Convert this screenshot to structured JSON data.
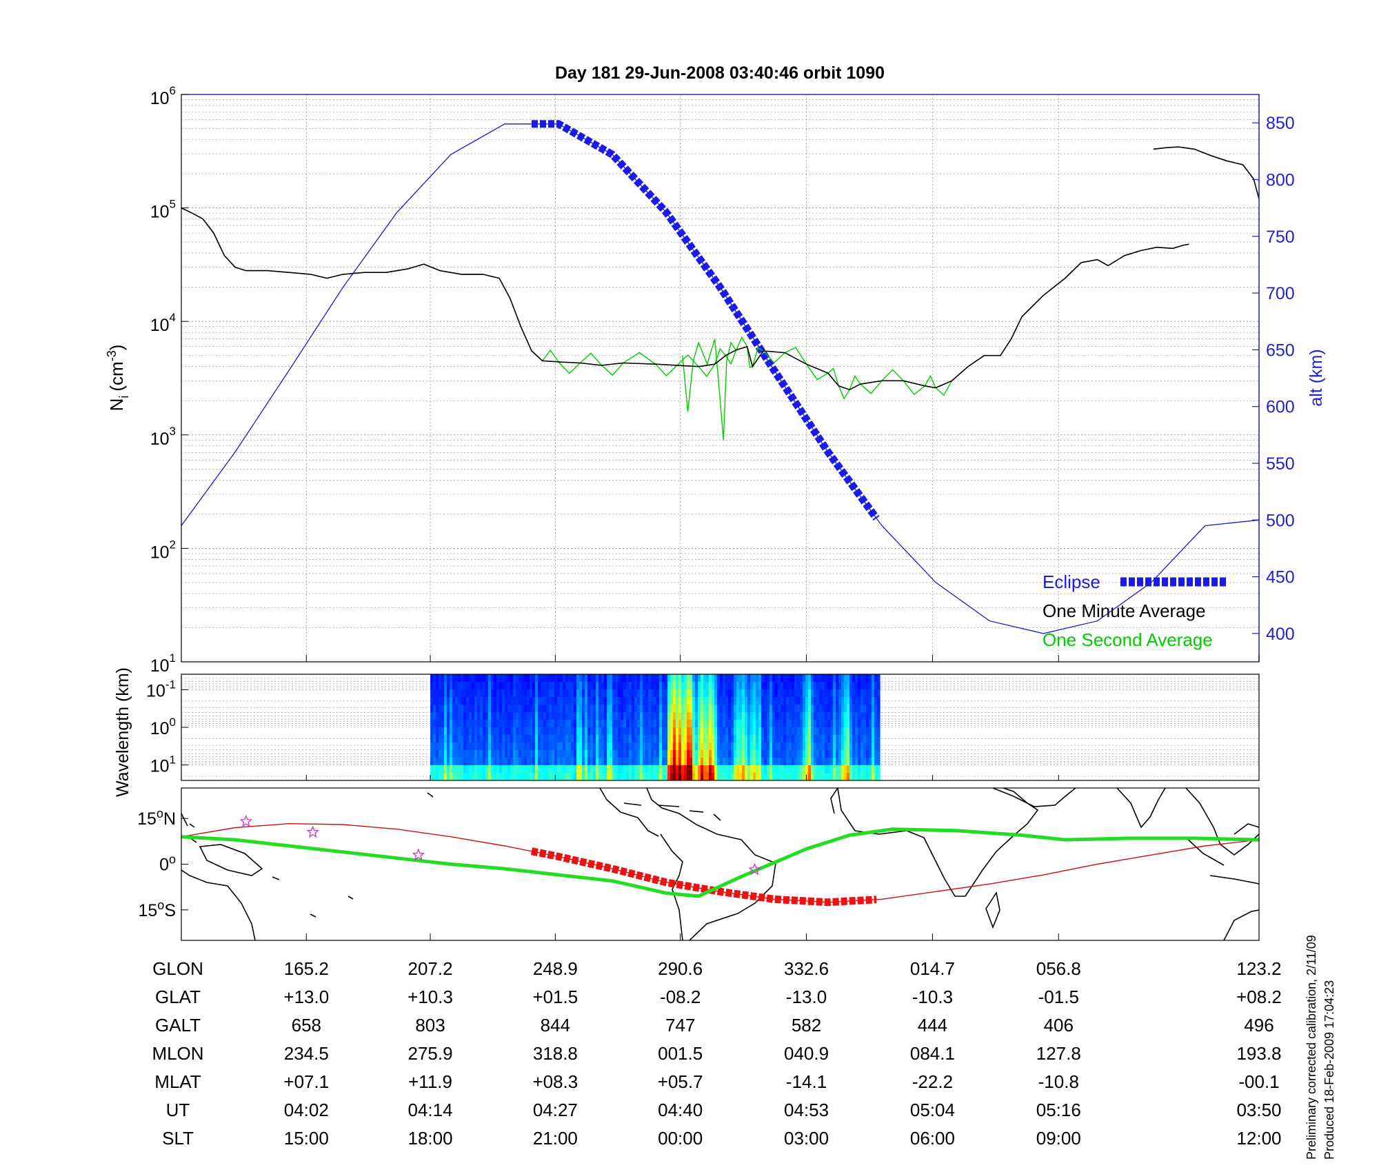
{
  "title": "Day 181  29-Jun-2008 03:40:46   orbit 1090",
  "colors": {
    "density_minute": "#000000",
    "density_second": "#00cc00",
    "altitude": "#1a1acc",
    "eclipse": "#1a1aee",
    "track": "#cc1111",
    "track_eclipse": "#ee1111",
    "magnetic_equator": "#22dd22",
    "star": "#cc33cc"
  },
  "legend": {
    "eclipse": "Eclipse",
    "minute": "One Minute Average",
    "second": "One Second Average"
  },
  "chart_data": [
    {
      "type": "line",
      "panel": "ion density and altitude",
      "ylabel_main": "N",
      "ylabel_sub": "i",
      "ylabel_paren": "(cm",
      "ylabel_sup": "-3",
      "ylabel_close": ")",
      "yscale": "log",
      "ylim": [
        10,
        1000000
      ],
      "yticks": [
        {
          "v": 1000000,
          "e": "6"
        },
        {
          "v": 100000,
          "e": "5"
        },
        {
          "v": 10000,
          "e": "4"
        },
        {
          "v": 1000,
          "e": "3"
        },
        {
          "v": 100,
          "e": "2"
        },
        {
          "v": 10,
          "e": "1"
        }
      ],
      "y2label": "alt (km)",
      "y2lim": [
        375,
        875
      ],
      "y2ticks": [
        "850",
        "800",
        "750",
        "700",
        "650",
        "600",
        "550",
        "500",
        "450",
        "400"
      ],
      "xlim": [
        0,
        100
      ],
      "minute_average": [
        [
          0,
          100000
        ],
        [
          1,
          90000
        ],
        [
          2,
          80000
        ],
        [
          3,
          60000
        ],
        [
          4,
          38000
        ],
        [
          5,
          30000
        ],
        [
          6,
          28000
        ],
        [
          8,
          28000
        ],
        [
          10,
          27000
        ],
        [
          12,
          26000
        ],
        [
          13.5,
          24000
        ],
        [
          15,
          26000
        ],
        [
          17,
          27000
        ],
        [
          19,
          27000
        ],
        [
          21,
          29000
        ],
        [
          22.5,
          32000
        ],
        [
          24,
          28000
        ],
        [
          26,
          26000
        ],
        [
          28,
          26000
        ],
        [
          29.5,
          24000
        ],
        [
          30.5,
          16000
        ],
        [
          31.5,
          9000
        ],
        [
          32.5,
          5500
        ],
        [
          33.5,
          4500
        ],
        [
          35,
          4400
        ],
        [
          37,
          4300
        ],
        [
          39,
          4100
        ],
        [
          41,
          4300
        ],
        [
          44,
          4200
        ],
        [
          46,
          4100
        ],
        [
          48,
          4000
        ],
        [
          49.5,
          4200
        ],
        [
          50.5,
          5000
        ],
        [
          51.5,
          5600
        ],
        [
          52.5,
          6000
        ],
        [
          53,
          4000
        ],
        [
          54,
          5500
        ],
        [
          56,
          5300
        ],
        [
          58,
          4200
        ],
        [
          60,
          3500
        ],
        [
          61,
          2700
        ],
        [
          62,
          2500
        ],
        [
          63,
          2800
        ],
        [
          65,
          3000
        ],
        [
          67,
          3000
        ],
        [
          69,
          2700
        ],
        [
          70,
          2600
        ],
        [
          71.5,
          3000
        ],
        [
          73,
          4000
        ],
        [
          74.5,
          5000
        ],
        [
          76,
          5000
        ],
        [
          77,
          7000
        ],
        [
          78,
          11000
        ],
        [
          80,
          17000
        ],
        [
          82,
          24000
        ],
        [
          83.5,
          33000
        ],
        [
          85,
          35000
        ],
        [
          86,
          31000
        ],
        [
          87.5,
          38000
        ],
        [
          89,
          42000
        ],
        [
          90.5,
          45000
        ],
        [
          92,
          44000
        ],
        [
          93,
          47000
        ],
        [
          93.5,
          48000
        ]
      ],
      "minute_average_2": [
        [
          90.2,
          330000
        ],
        [
          91.5,
          340000
        ],
        [
          92.5,
          345000
        ],
        [
          94,
          330000
        ],
        [
          95.5,
          290000
        ],
        [
          97,
          260000
        ],
        [
          98.5,
          240000
        ],
        [
          99.5,
          180000
        ],
        [
          100,
          120000
        ]
      ],
      "second_spike": [
        [
          46.5,
          5000
        ],
        [
          47,
          1600
        ],
        [
          47.5,
          4500
        ],
        [
          48,
          6500
        ],
        [
          48.8,
          4200
        ],
        [
          49.5,
          7000
        ],
        [
          50,
          2000
        ],
        [
          50.3,
          900
        ],
        [
          50.6,
          4500
        ],
        [
          51,
          6500
        ],
        [
          51.5,
          5500
        ]
      ],
      "altitude": [
        [
          0,
          495
        ],
        [
          5,
          560
        ],
        [
          10,
          632
        ],
        [
          15,
          705
        ],
        [
          20,
          771
        ],
        [
          25,
          822
        ],
        [
          30,
          849
        ],
        [
          35,
          849
        ],
        [
          40,
          822
        ],
        [
          45,
          771
        ],
        [
          50,
          705
        ],
        [
          55,
          632
        ],
        [
          60,
          560
        ],
        [
          65,
          495
        ],
        [
          70,
          445
        ],
        [
          75,
          411
        ],
        [
          80,
          400
        ],
        [
          85,
          411
        ],
        [
          90,
          445
        ],
        [
          95,
          495
        ],
        [
          100,
          500
        ]
      ],
      "eclipse": {
        "start": 32.5,
        "end": 64.8
      }
    },
    {
      "type": "heatmap",
      "panel": "spectrogram",
      "ylabel": "Wavelength (km)",
      "yticks": [
        {
          "v": 0.1,
          "m": "10",
          "e": "-1"
        },
        {
          "v": 1,
          "m": "10",
          "e": "0"
        },
        {
          "v": 10,
          "m": "10",
          "e": "1"
        }
      ],
      "data_span": {
        "start": 23.1,
        "end": 64.8
      },
      "colormap": "jet",
      "activity_peaks": [
        {
          "x": 45.6,
          "level": 0.75
        },
        {
          "x": 46.1,
          "level": 0.7
        },
        {
          "x": 47.0,
          "level": 0.65
        },
        {
          "x": 48.2,
          "level": 0.55
        },
        {
          "x": 49.0,
          "level": 0.6
        },
        {
          "x": 52.0,
          "level": 0.35
        },
        {
          "x": 53.0,
          "level": 0.3
        },
        {
          "x": 58.0,
          "level": 0.3
        },
        {
          "x": 61.5,
          "level": 0.28
        }
      ]
    },
    {
      "type": "line",
      "panel": "ground track map",
      "yticks": [
        {
          "v": 15,
          "label": "15",
          "hemi": "N"
        },
        {
          "v": 0,
          "label": "0",
          "hemi": ""
        },
        {
          "v": -15,
          "label": "15",
          "hemi": "S"
        }
      ],
      "ylim": [
        -25,
        25
      ],
      "track": [
        [
          0,
          9
        ],
        [
          5,
          12
        ],
        [
          10,
          13.3
        ],
        [
          15,
          13
        ],
        [
          20,
          11.5
        ],
        [
          25,
          9
        ],
        [
          30,
          6
        ],
        [
          35,
          2.5
        ],
        [
          40,
          -1.5
        ],
        [
          45,
          -6
        ],
        [
          50,
          -9
        ],
        [
          55,
          -11.5
        ],
        [
          60,
          -12.5
        ],
        [
          65,
          -11.5
        ],
        [
          70,
          -9
        ],
        [
          75,
          -6.5
        ],
        [
          80,
          -3.5
        ],
        [
          85,
          0
        ],
        [
          90,
          3
        ],
        [
          95,
          6
        ],
        [
          100,
          8
        ]
      ],
      "magnetic_equator": [
        [
          0,
          9
        ],
        [
          5,
          8
        ],
        [
          10,
          6
        ],
        [
          15,
          4
        ],
        [
          20,
          2
        ],
        [
          25,
          0
        ],
        [
          30,
          -1.5
        ],
        [
          35,
          -3.5
        ],
        [
          40,
          -5.5
        ],
        [
          45,
          -9.5
        ],
        [
          48,
          -10.5
        ],
        [
          52,
          -4
        ],
        [
          58,
          5
        ],
        [
          62,
          9.5
        ],
        [
          66,
          11.5
        ],
        [
          72,
          11
        ],
        [
          78,
          9.5
        ],
        [
          82,
          8
        ],
        [
          88,
          8.5
        ],
        [
          94,
          8.5
        ],
        [
          100,
          8
        ]
      ],
      "eclipse": {
        "start": 32.5,
        "end": 64.8
      },
      "stars": [
        [
          6,
          14
        ],
        [
          12.2,
          10.5
        ],
        [
          22,
          3
        ],
        [
          53.2,
          -1.8
        ]
      ]
    }
  ],
  "table": {
    "rows": [
      {
        "label": "GLON",
        "values": [
          "165.2",
          "207.2",
          "248.9",
          "290.6",
          "332.6",
          "014.7",
          "056.8",
          "123.2"
        ]
      },
      {
        "label": "GLAT",
        "values": [
          "+13.0",
          "+10.3",
          "+01.5",
          "-08.2",
          "-13.0",
          "-10.3",
          "-01.5",
          "+08.2"
        ]
      },
      {
        "label": "GALT",
        "values": [
          "658",
          "803",
          "844",
          "747",
          "582",
          "444",
          "406",
          "496"
        ]
      },
      {
        "label": "MLON",
        "values": [
          "234.5",
          "275.9",
          "318.8",
          "001.5",
          "040.9",
          "084.1",
          "127.8",
          "193.8"
        ]
      },
      {
        "label": "MLAT",
        "values": [
          "+07.1",
          "+11.9",
          "+08.3",
          "+05.7",
          "-14.1",
          "-22.2",
          "-10.8",
          "-00.1"
        ]
      },
      {
        "label": "UT",
        "values": [
          "04:02",
          "04:14",
          "04:27",
          "04:40",
          "04:53",
          "05:04",
          "05:16",
          "03:50"
        ]
      },
      {
        "label": "SLT",
        "values": [
          "15:00",
          "18:00",
          "21:00",
          "00:00",
          "03:00",
          "06:00",
          "09:00",
          "12:00"
        ]
      }
    ]
  },
  "footnote": {
    "line1": "Preliminary corrected calibration, 2/11/09",
    "line2": "Produced 18-Feb-2009 17:04:23"
  }
}
